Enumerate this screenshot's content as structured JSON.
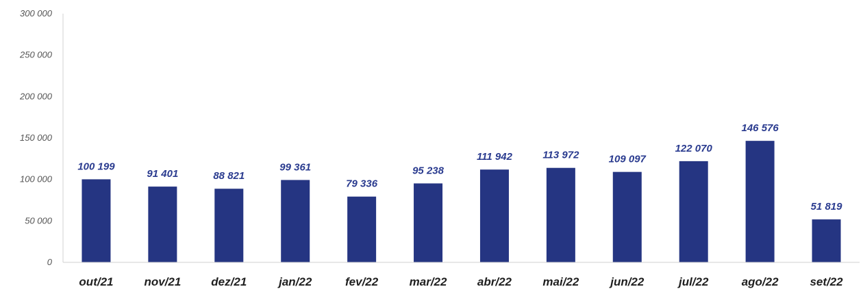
{
  "chart_data": {
    "type": "bar",
    "categories": [
      "out/21",
      "nov/21",
      "dez/21",
      "jan/22",
      "fev/22",
      "mar/22",
      "abr/22",
      "mai/22",
      "jun/22",
      "jul/22",
      "ago/22",
      "set/22"
    ],
    "values": [
      100199,
      91401,
      88821,
      99361,
      79336,
      95238,
      111942,
      113972,
      109097,
      122070,
      146576,
      51819
    ],
    "data_labels": [
      "100 199",
      "91 401",
      "88 821",
      "99 361",
      "79 336",
      "95 238",
      "111 942",
      "113 972",
      "109 097",
      "122 070",
      "146 576",
      "51 819"
    ],
    "y_ticks": [
      0,
      50000,
      100000,
      150000,
      200000,
      250000,
      300000
    ],
    "y_tick_labels": [
      "0",
      "50 000",
      "100 000",
      "150 000",
      "200 000",
      "250 000",
      "300 000"
    ],
    "ylim": [
      0,
      300000
    ],
    "grid": false,
    "legend": "none",
    "colors": {
      "bar": "#253582",
      "data_label": "#2a3b8f",
      "axis": "#d0d0d0"
    }
  }
}
